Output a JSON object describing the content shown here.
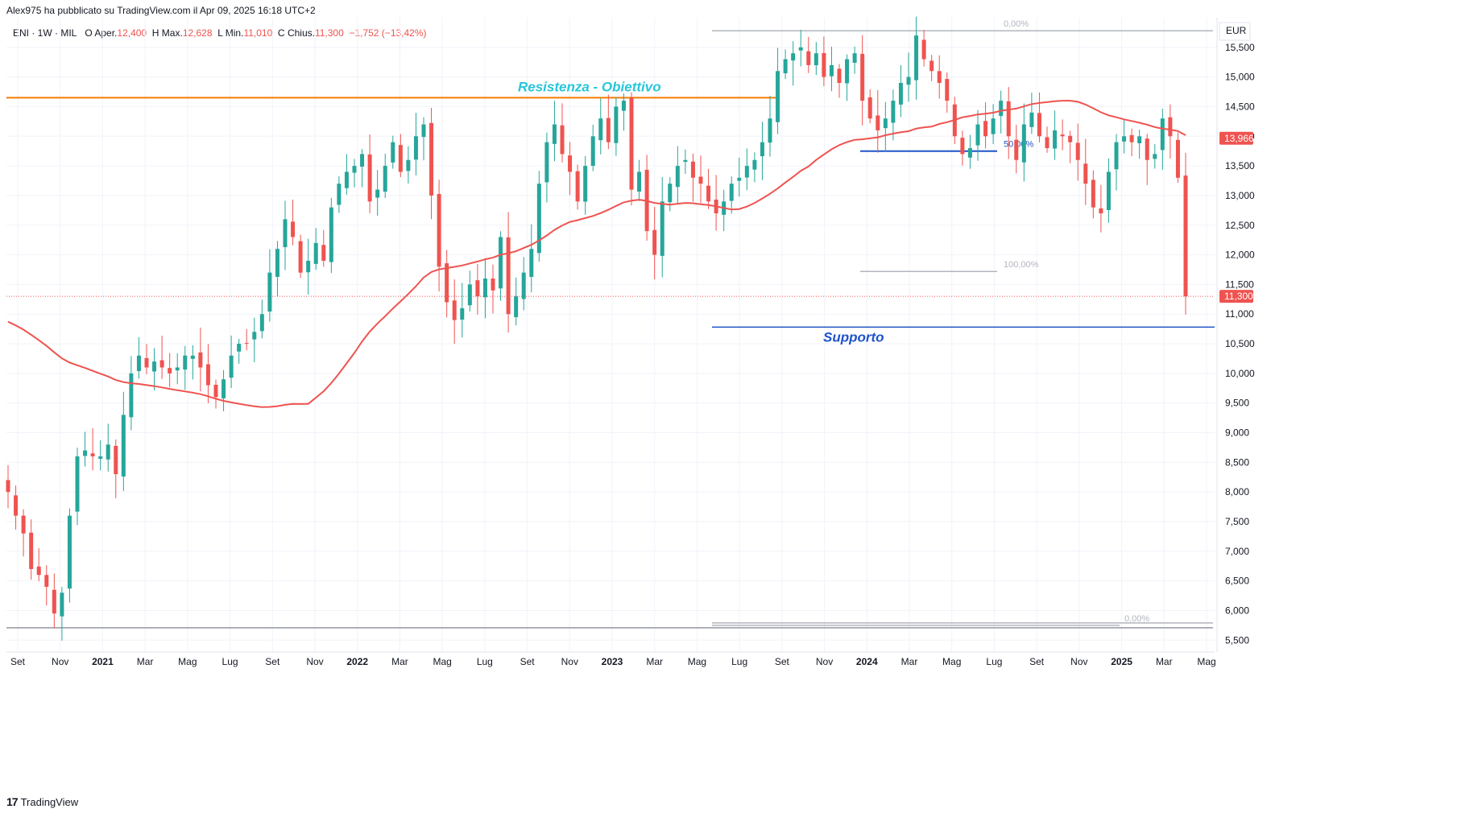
{
  "header": {
    "publish_line": "Alex975 ha pubblicato su TradingView.com il Apr 09, 2025 16:18 UTC+2",
    "symbol": "ENI · 1W · MIL",
    "open_label": "O",
    "open_text": "Aper.",
    "open_value": "12,400",
    "high_label": "H",
    "high_text": "Max.",
    "high_value": "12,628",
    "low_label": "L",
    "low_text": "Min.",
    "low_value": "11,010",
    "close_label": "C",
    "close_text": "Chius.",
    "close_value": "11,300",
    "change": "−1,752 (−13,42%)"
  },
  "footer": {
    "brand": "TradingView",
    "logo": "17"
  },
  "colors": {
    "up": "#26a69a",
    "down": "#ef5350",
    "ma": "#ef5350",
    "resistance": "#f57c00",
    "support": "#1e53c9",
    "fib": "#b2b5be",
    "label_resistance": "#26c6da",
    "label_support": "#1e53c9"
  },
  "chart_data": {
    "type": "candlestick",
    "currency": "EUR",
    "y_axis": {
      "min": 5.3,
      "max": 16.0,
      "ticks": [
        "5,500",
        "6,000",
        "6,500",
        "7,000",
        "7,500",
        "8,000",
        "8,500",
        "9,000",
        "9,500",
        "10,000",
        "10,500",
        "11,000",
        "11,500",
        "12,000",
        "12,500",
        "13,000",
        "13,500",
        "14,000",
        "14,500",
        "15,000",
        "15,500"
      ]
    },
    "x_axis": {
      "labels": [
        {
          "t": "Set",
          "bold": false
        },
        {
          "t": "Nov",
          "bold": false
        },
        {
          "t": "2021",
          "bold": true
        },
        {
          "t": "Mar",
          "bold": false
        },
        {
          "t": "Mag",
          "bold": false
        },
        {
          "t": "Lug",
          "bold": false
        },
        {
          "t": "Set",
          "bold": false
        },
        {
          "t": "Nov",
          "bold": false
        },
        {
          "t": "2022",
          "bold": true
        },
        {
          "t": "Mar",
          "bold": false
        },
        {
          "t": "Mag",
          "bold": false
        },
        {
          "t": "Lug",
          "bold": false
        },
        {
          "t": "Set",
          "bold": false
        },
        {
          "t": "Nov",
          "bold": false
        },
        {
          "t": "2023",
          "bold": true
        },
        {
          "t": "Mar",
          "bold": false
        },
        {
          "t": "Mag",
          "bold": false
        },
        {
          "t": "Lug",
          "bold": false
        },
        {
          "t": "Set",
          "bold": false
        },
        {
          "t": "Nov",
          "bold": false
        },
        {
          "t": "2024",
          "bold": true
        },
        {
          "t": "Mar",
          "bold": false
        },
        {
          "t": "Mag",
          "bold": false
        },
        {
          "t": "Lug",
          "bold": false
        },
        {
          "t": "Set",
          "bold": false
        },
        {
          "t": "Nov",
          "bold": false
        },
        {
          "t": "2025",
          "bold": true
        },
        {
          "t": "Mar",
          "bold": false
        },
        {
          "t": "Mag",
          "bold": false
        }
      ]
    },
    "close_path": [
      8.0,
      7.6,
      7.3,
      6.7,
      6.6,
      6.4,
      5.95,
      6.3,
      7.6,
      8.6,
      8.7,
      8.6,
      8.6,
      8.8,
      8.3,
      9.3,
      10.0,
      10.3,
      10.1,
      10.2,
      10.1,
      10.0,
      10.1,
      10.3,
      10.3,
      10.1,
      9.8,
      9.6,
      9.9,
      10.3,
      10.5,
      10.5,
      10.7,
      11.0,
      11.7,
      12.1,
      12.6,
      12.3,
      11.7,
      11.9,
      12.2,
      11.9,
      12.8,
      13.2,
      13.4,
      13.5,
      13.7,
      12.9,
      13.1,
      13.5,
      13.9,
      13.4,
      13.6,
      14.0,
      14.2,
      13.0,
      11.8,
      11.2,
      10.9,
      11.1,
      11.5,
      11.3,
      11.6,
      11.4,
      12.3,
      11.0,
      11.3,
      11.7,
      12.1,
      13.2,
      13.9,
      14.2,
      13.7,
      13.4,
      12.9,
      13.5,
      14.0,
      14.3,
      13.9,
      14.5,
      14.6,
      13.1,
      13.4,
      12.4,
      12.0,
      12.9,
      13.2,
      13.5,
      13.6,
      13.3,
      13.2,
      12.9,
      12.7,
      12.9,
      13.2,
      13.3,
      13.5,
      13.6,
      13.9,
      14.3,
      15.1,
      15.3,
      15.4,
      15.5,
      15.2,
      15.4,
      15.0,
      15.2,
      14.9,
      15.3,
      15.4,
      14.6,
      14.3,
      14.1,
      14.3,
      14.6,
      14.9,
      15.0,
      15.7,
      15.3,
      15.1,
      14.9,
      14.6,
      14.0,
      13.7,
      13.8,
      14.2,
      14.0,
      14.3,
      14.6,
      14.0,
      13.6,
      14.2,
      14.4,
      14.0,
      13.8,
      14.1,
      14.0,
      13.9,
      13.6,
      13.2,
      12.8,
      12.7,
      13.4,
      13.9,
      14.0,
      13.9,
      14.0,
      13.6,
      13.7,
      14.3,
      14.0,
      13.3,
      11.3
    ],
    "moving_average": {
      "type": "SMA",
      "color": "#ef5350",
      "last_value": "13,966"
    },
    "horizontal_levels": [
      {
        "name": "Resistenza - Obiettivo",
        "price": 14.65,
        "color": "#f57c00"
      },
      {
        "name": "Supporto",
        "price": 10.78,
        "color": "#1e53c9"
      }
    ],
    "fib_levels": [
      {
        "label": "0,00%",
        "price": 15.78
      },
      {
        "label": "50,00%",
        "price": 13.75
      },
      {
        "label": "100,00%",
        "price": 11.72
      },
      {
        "label": "0,00%",
        "price": 5.75
      }
    ],
    "last_price": "11,300",
    "ma_price_label": "13,966"
  },
  "annotations": {
    "resistance_label": "Resistenza - Obiettivo",
    "support_label": "Supporto"
  }
}
